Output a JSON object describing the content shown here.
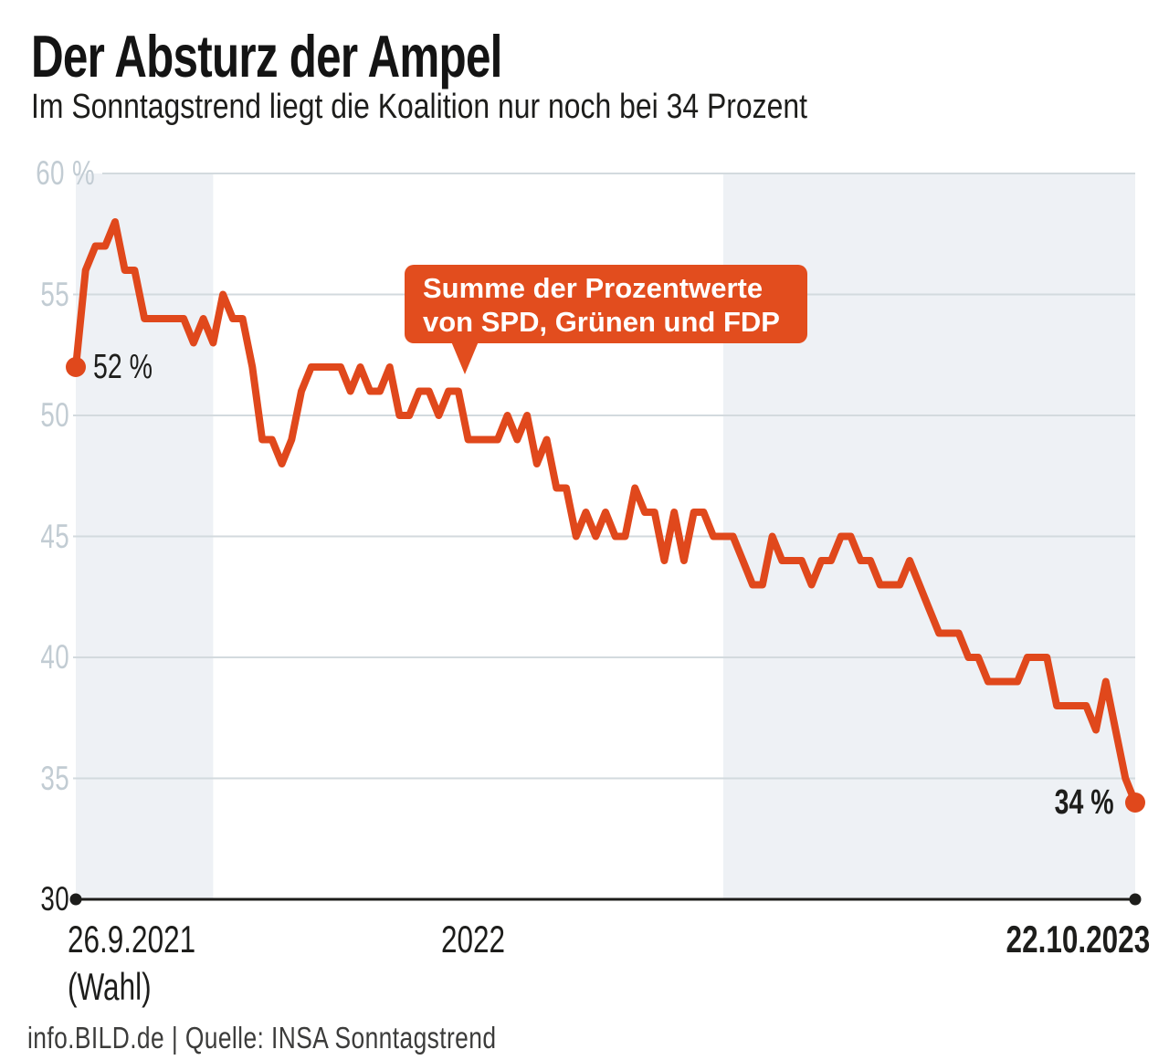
{
  "header": {
    "title": "Der Absturz der Ampel",
    "subtitle": "Im Sonntagstrend liegt die Koalition nur noch bei 34 Prozent"
  },
  "callout": {
    "line1": "Summe der Prozentwerte",
    "line2": "von SPD, Grünen und FDP"
  },
  "point_labels": {
    "start": "52 %",
    "end": "34 %"
  },
  "x_axis": {
    "start": "26.9.2021",
    "start_note": "(Wahl)",
    "mid": "2022",
    "end": "22.10.2023"
  },
  "y_axis": {
    "tick_labels": [
      "60 %",
      "55",
      "50",
      "45",
      "40",
      "35",
      "30"
    ],
    "tick_values": [
      60,
      55,
      50,
      45,
      40,
      35,
      30
    ]
  },
  "footer": {
    "source": "info.BILD.de | Quelle: INSA Sonntagstrend"
  },
  "colors": {
    "line": "#e0481c",
    "callout_bg": "#e24d1e",
    "band": "#eef1f5",
    "gridline": "#d3dade",
    "axis": "#1d1d1b",
    "tick_label": "#c2ccd3",
    "tick_label_last": "#1d1d1b",
    "text": "#1d1d1b",
    "footer_text": "#3c3c3b"
  },
  "chart_data": {
    "type": "line",
    "title": "Der Absturz der Ampel",
    "subtitle": "Im Sonntagstrend liegt die Koalition nur noch bei 34 Prozent",
    "series": [
      {
        "name": "Summe der Prozentwerte von SPD, Grünen und FDP",
        "values": [
          52,
          56,
          57,
          57,
          58,
          56,
          56,
          54,
          54,
          54,
          54,
          54,
          53,
          54,
          53,
          55,
          54,
          54,
          52,
          49,
          49,
          48,
          49,
          51,
          52,
          52,
          52,
          52,
          51,
          52,
          51,
          51,
          52,
          50,
          50,
          51,
          51,
          50,
          51,
          51,
          49,
          49,
          49,
          49,
          50,
          49,
          50,
          48,
          49,
          47,
          47,
          45,
          46,
          45,
          46,
          45,
          45,
          47,
          46,
          46,
          44,
          46,
          44,
          46,
          46,
          45,
          45,
          45,
          44,
          43,
          43,
          45,
          44,
          44,
          44,
          43,
          44,
          44,
          45,
          45,
          44,
          44,
          43,
          43,
          43,
          44,
          43,
          42,
          41,
          41,
          41,
          40,
          40,
          39,
          39,
          39,
          39,
          40,
          40,
          40,
          38,
          38,
          38,
          38,
          37,
          39,
          37,
          35,
          34
        ]
      }
    ],
    "x_start_label": "26.9.2021 (Wahl)",
    "x_end_label": "22.10.2023",
    "x_interval": "weekly Sonntagstrend poll, one value per week",
    "first_value": 52,
    "peak_value": 58,
    "last_value": 34,
    "ylim": [
      30,
      60
    ],
    "yticks": [
      60,
      55,
      50,
      45,
      40,
      35,
      30
    ],
    "grid": "horizontal",
    "shaded_year_bands": [
      {
        "label": "2021",
        "from_index": 0,
        "to_index": 14
      },
      {
        "label": "2023",
        "from_index": 66,
        "to_index": 108
      }
    ],
    "legend_position": "none"
  }
}
